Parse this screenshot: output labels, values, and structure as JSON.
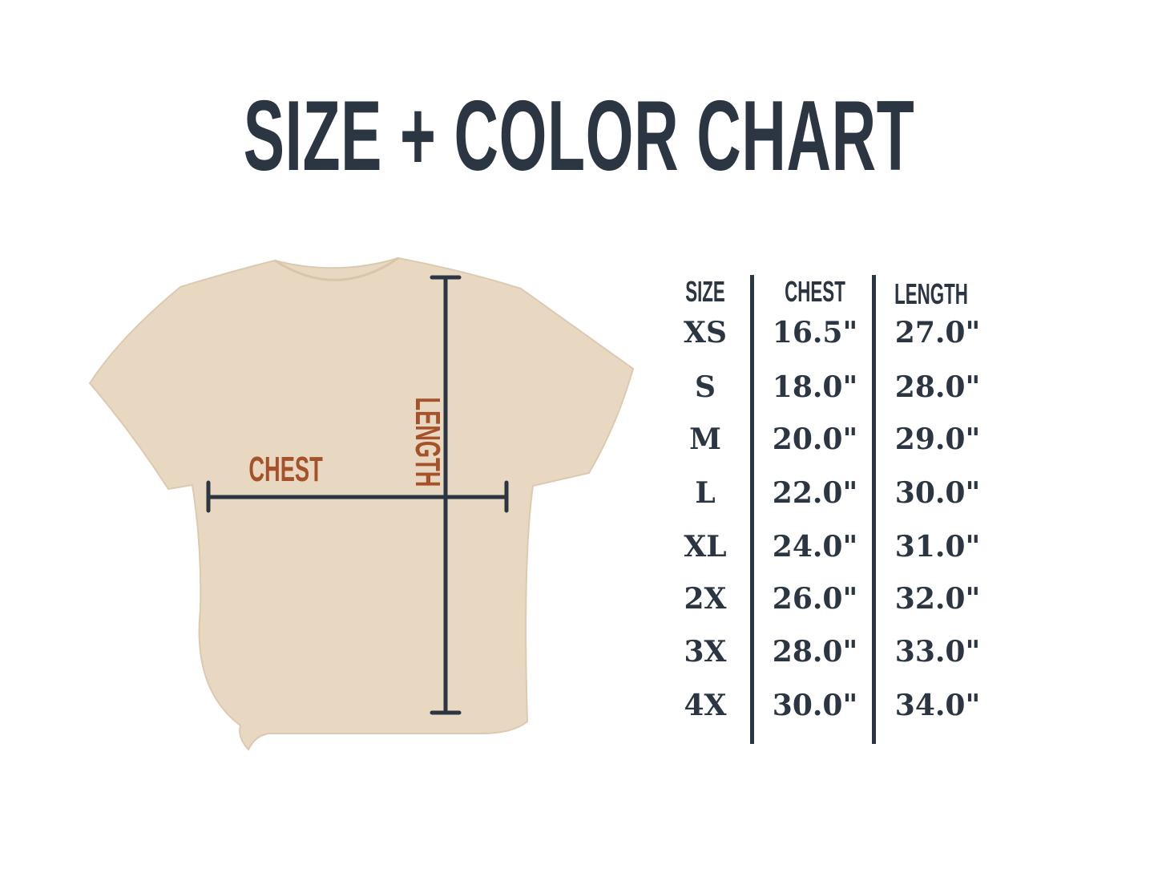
{
  "title": "SIZE + COLOR CHART",
  "shirt": {
    "color": "#e9d8c1",
    "chest_label": "CHEST",
    "length_label": "LENGTH",
    "label_color": "#a5512a",
    "measure_line_color": "#2b3642"
  },
  "table": {
    "headers": [
      "SIZE",
      "CHEST",
      "LENGTH"
    ],
    "rows": [
      {
        "size": "XS",
        "chest": "16.5\"",
        "length": "27.0\""
      },
      {
        "size": "S",
        "chest": "18.0\"",
        "length": "28.0\""
      },
      {
        "size": "M",
        "chest": "20.0\"",
        "length": "29.0\""
      },
      {
        "size": "L",
        "chest": "22.0\"",
        "length": "30.0\""
      },
      {
        "size": "XL",
        "chest": "24.0\"",
        "length": "31.0\""
      },
      {
        "size": "2X",
        "chest": "26.0\"",
        "length": "32.0\""
      },
      {
        "size": "3X",
        "chest": "28.0\"",
        "length": "33.0\""
      },
      {
        "size": "4X",
        "chest": "30.0\"",
        "length": "34.0\""
      }
    ]
  }
}
